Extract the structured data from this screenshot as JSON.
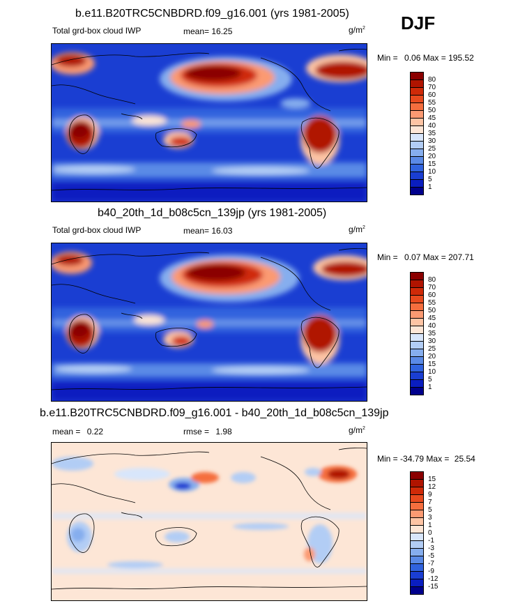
{
  "season": "DJF",
  "units": "g/m",
  "units_sup": "2",
  "panels": [
    {
      "title": "b.e11.B20TRC5CNBDRD.f09_g16.001 (yrs 1981-2005)",
      "left_label": "Total grd-box cloud IWP",
      "stat_label": "mean=",
      "stat_value": "16.25",
      "stat2_label": "",
      "stat2_value": "",
      "min_label": "Min =",
      "min_value": "0.06",
      "max_label": "Max =",
      "max_value": "195.52"
    },
    {
      "title": "b40_20th_1d_b08c5cn_139jp (yrs 1981-2005)",
      "left_label": "Total grd-box cloud IWP",
      "stat_label": "mean=",
      "stat_value": "16.03",
      "stat2_label": "",
      "stat2_value": "",
      "min_label": "Min =",
      "min_value": "0.07",
      "max_label": "Max =",
      "max_value": "207.71"
    },
    {
      "title": "b.e11.B20TRC5CNBDRD.f09_g16.001 - b40_20th_1d_b08c5cn_139jp",
      "left_label": "mean =",
      "stat_label": "",
      "stat_value": "0.22",
      "stat2_label": "rmse =",
      "stat2_value": "1.98",
      "min_label": "Min =",
      "min_value": "-34.79",
      "max_label": "Max =",
      "max_value": "25.54"
    }
  ],
  "colorbars": {
    "abs": {
      "levels": [
        "80",
        "70",
        "60",
        "55",
        "50",
        "45",
        "40",
        "35",
        "30",
        "25",
        "20",
        "15",
        "10",
        "5",
        "1"
      ],
      "colors": [
        "#8b0000",
        "#b01400",
        "#cf2a08",
        "#e84a1e",
        "#f56e3e",
        "#fb9a72",
        "#fdc4a4",
        "#fde6d6",
        "#d8e6fb",
        "#b2cdf5",
        "#86aeee",
        "#5a8ae6",
        "#3063de",
        "#1a3ed2",
        "#0a1ec0",
        "#00008c"
      ]
    },
    "diff": {
      "levels": [
        "15",
        "12",
        "9",
        "7",
        "5",
        "3",
        "1",
        "0",
        "-1",
        "-3",
        "-5",
        "-7",
        "-9",
        "-12",
        "-15"
      ],
      "colors": [
        "#8b0000",
        "#b01400",
        "#cf2a08",
        "#e84a1e",
        "#f56e3e",
        "#fb9a72",
        "#fdc4a4",
        "#fde6d6",
        "#d8e6fb",
        "#b2cdf5",
        "#86aeee",
        "#5a8ae6",
        "#3063de",
        "#1a3ed2",
        "#0a1ec0",
        "#00008c"
      ]
    }
  }
}
